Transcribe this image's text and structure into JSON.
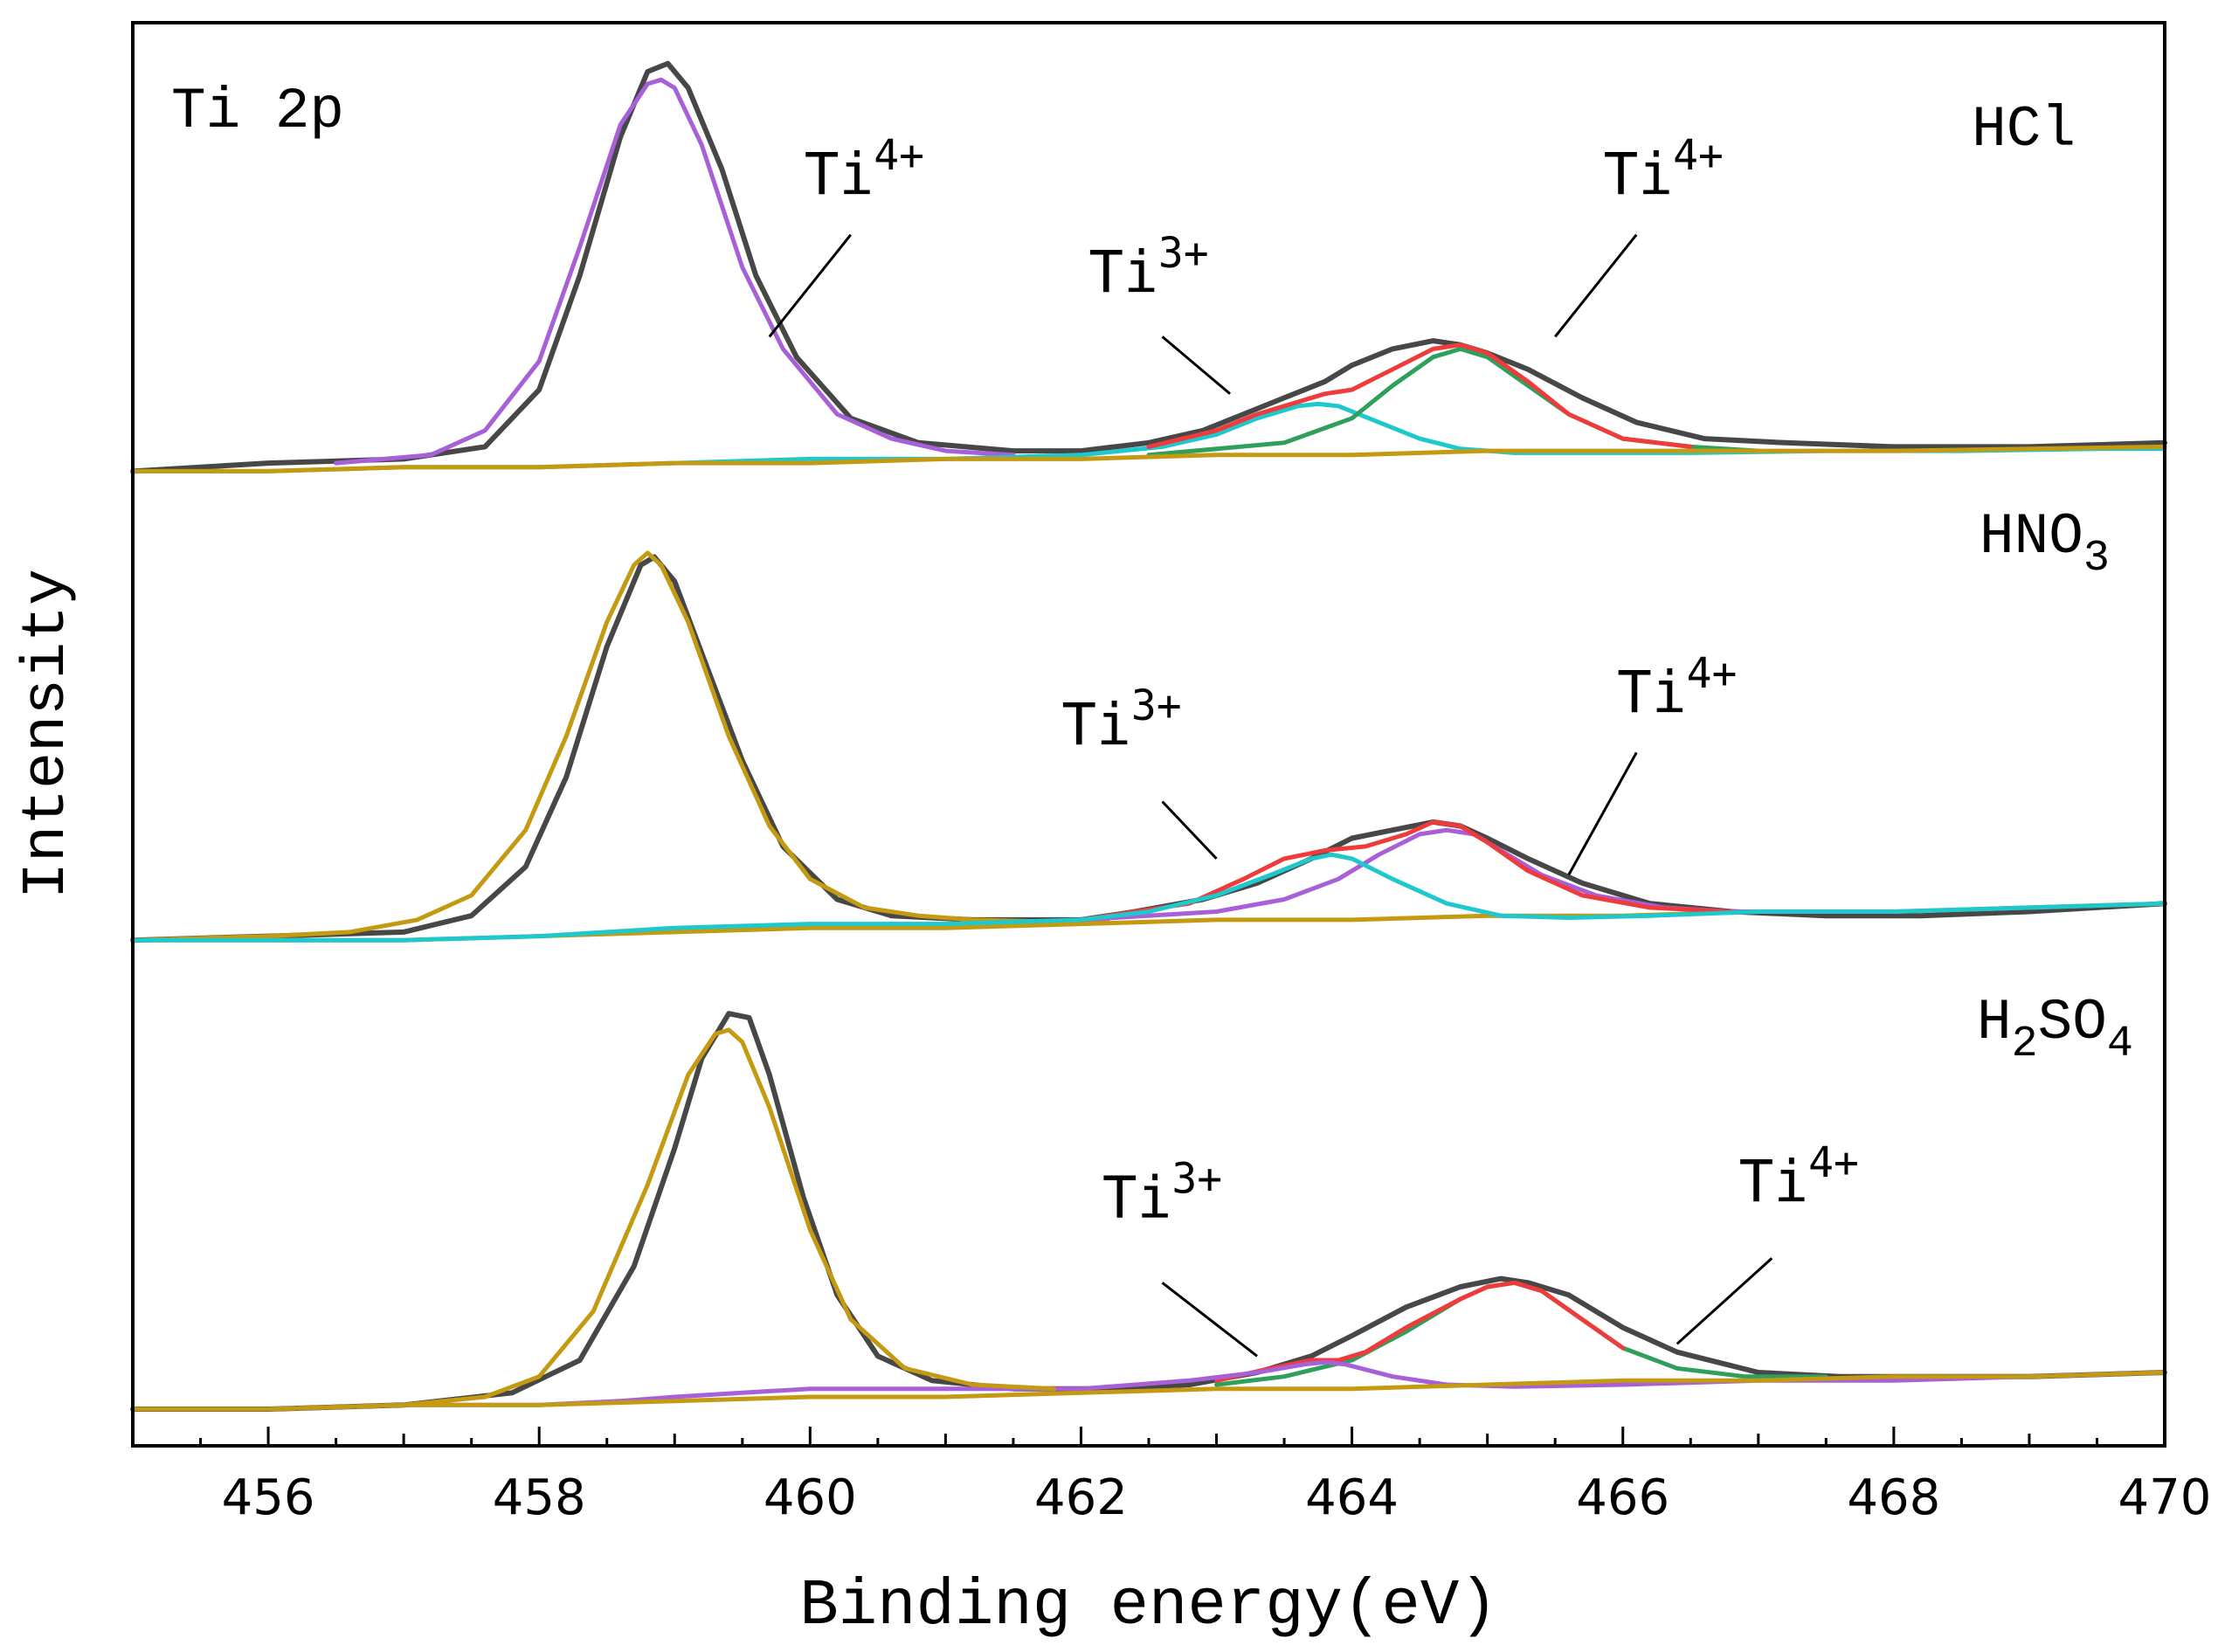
{
  "chart_data": {
    "type": "line",
    "title": "Ti 2p",
    "xlabel": "Binding energy(eV)",
    "ylabel": "Intensity",
    "xlim": [
      455,
      470
    ],
    "ylim": [
      0,
      3.4
    ],
    "xticks": [
      456,
      458,
      460,
      462,
      464,
      466,
      468,
      470
    ],
    "colors": {
      "raw": "#474747",
      "envelope": "#ef3b3b",
      "ti4_main": "#a860d8",
      "ti4_sat": "#2ea05c",
      "ti3": "#1ec8cc",
      "background": "#c49a12",
      "axis": "#000000"
    },
    "panels": [
      {
        "name": "HCl",
        "sample": "HCl",
        "offset": 2.3,
        "annotations": [
          {
            "name": "ti4-main",
            "base": "Ti",
            "sup": "4+",
            "x": 460.4,
            "y": 0.68,
            "line_from": [
              460.3,
              0.58
            ],
            "line_to": [
              459.7,
              0.33
            ]
          },
          {
            "name": "ti3",
            "base": "Ti",
            "sup": "3+",
            "x": 462.5,
            "y": 0.44,
            "line_from": [
              462.6,
              0.33
            ],
            "line_to": [
              463.1,
              0.19
            ]
          },
          {
            "name": "ti4-sat",
            "base": "Ti",
            "sup": "4+",
            "x": 466.3,
            "y": 0.68,
            "line_from": [
              466.1,
              0.58
            ],
            "line_to": [
              465.5,
              0.33
            ]
          }
        ],
        "series": [
          {
            "name": "raw",
            "x": [
              455,
              456,
              457,
              457.6,
              458.0,
              458.3,
              458.6,
              458.8,
              458.95,
              459.1,
              459.35,
              459.6,
              459.9,
              460.3,
              460.8,
              461.5,
              462.0,
              462.5,
              462.9,
              463.2,
              463.5,
              463.8,
              464.0,
              464.3,
              464.6,
              464.8,
              465.0,
              465.3,
              465.7,
              466.1,
              466.6,
              467.2,
              468,
              469,
              470
            ],
            "y": [
              0.0,
              0.02,
              0.03,
              0.06,
              0.2,
              0.48,
              0.82,
              0.98,
              1.0,
              0.94,
              0.74,
              0.48,
              0.28,
              0.13,
              0.07,
              0.05,
              0.05,
              0.07,
              0.1,
              0.14,
              0.18,
              0.22,
              0.26,
              0.3,
              0.32,
              0.31,
              0.29,
              0.25,
              0.18,
              0.12,
              0.08,
              0.07,
              0.06,
              0.06,
              0.07
            ]
          },
          {
            "name": "ti4-main-fit",
            "x": [
              456.5,
              457.2,
              457.6,
              458.0,
              458.3,
              458.6,
              458.8,
              458.9,
              459.0,
              459.2,
              459.5,
              459.8,
              460.2,
              460.6,
              461.0,
              461.5
            ],
            "y": [
              0.02,
              0.04,
              0.1,
              0.27,
              0.55,
              0.85,
              0.95,
              0.96,
              0.94,
              0.8,
              0.5,
              0.3,
              0.14,
              0.08,
              0.05,
              0.04
            ]
          },
          {
            "name": "ti3-fit",
            "x": [
              455,
              456,
              457,
              458,
              459,
              460,
              461,
              462,
              462.6,
              463.0,
              463.3,
              463.6,
              463.75,
              463.9,
              464.2,
              464.5,
              464.8,
              465.2,
              465.8,
              466.5,
              467.5,
              468.5,
              469.5,
              470
            ],
            "y": [
              0.0,
              0.0,
              0.01,
              0.01,
              0.02,
              0.03,
              0.03,
              0.04,
              0.06,
              0.09,
              0.13,
              0.16,
              0.165,
              0.16,
              0.12,
              0.08,
              0.055,
              0.045,
              0.045,
              0.045,
              0.05,
              0.05,
              0.055,
              0.055
            ]
          },
          {
            "name": "ti4-sat-fit",
            "x": [
              462.5,
              463.5,
              464.0,
              464.3,
              464.6,
              464.8,
              465.0,
              465.3,
              465.6,
              466.0,
              466.5,
              467.0
            ],
            "y": [
              0.04,
              0.07,
              0.13,
              0.21,
              0.28,
              0.3,
              0.28,
              0.21,
              0.14,
              0.08,
              0.06,
              0.05
            ]
          },
          {
            "name": "envelope-fit",
            "x": [
              462.5,
              463.0,
              463.3,
              463.6,
              463.8,
              464.0,
              464.3,
              464.6,
              464.8,
              465.0,
              465.3,
              465.6,
              466.0,
              466.5
            ],
            "y": [
              0.06,
              0.1,
              0.14,
              0.17,
              0.19,
              0.2,
              0.25,
              0.3,
              0.31,
              0.29,
              0.22,
              0.14,
              0.08,
              0.06
            ]
          },
          {
            "name": "background",
            "x": [
              455,
              456,
              457,
              458,
              459,
              460,
              461,
              462,
              463,
              464,
              465,
              466,
              467,
              468,
              469,
              470
            ],
            "y": [
              0.0,
              0.0,
              0.01,
              0.01,
              0.02,
              0.02,
              0.03,
              0.03,
              0.04,
              0.04,
              0.05,
              0.05,
              0.05,
              0.05,
              0.055,
              0.06
            ]
          }
        ]
      },
      {
        "name": "HNO3",
        "sample": "HNO",
        "sample_sub": "3",
        "offset": 1.15,
        "annotations": [
          {
            "name": "ti3",
            "base": "Ti",
            "sup": "3+",
            "x": 462.3,
            "y": 0.48,
            "line_from": [
              462.6,
              0.34
            ],
            "line_to": [
              463.0,
              0.2
            ]
          },
          {
            "name": "ti4-sat",
            "base": "Ti",
            "sup": "4+",
            "x": 466.4,
            "y": 0.56,
            "line_from": [
              466.1,
              0.46
            ],
            "line_to": [
              465.6,
              0.16
            ]
          }
        ],
        "series": [
          {
            "name": "raw",
            "x": [
              455,
              456,
              457,
              457.5,
              457.9,
              458.2,
              458.5,
              458.75,
              458.85,
              459.0,
              459.25,
              459.5,
              459.8,
              460.2,
              460.6,
              461.2,
              462.0,
              462.4,
              462.9,
              463.3,
              463.7,
              464.0,
              464.3,
              464.6,
              464.8,
              465.0,
              465.3,
              465.7,
              466.2,
              466.8,
              467.5,
              468.2,
              469,
              470
            ],
            "y": [
              0.0,
              0.01,
              0.02,
              0.06,
              0.18,
              0.4,
              0.72,
              0.92,
              0.94,
              0.88,
              0.66,
              0.44,
              0.23,
              0.1,
              0.06,
              0.05,
              0.05,
              0.07,
              0.1,
              0.14,
              0.2,
              0.25,
              0.27,
              0.29,
              0.28,
              0.25,
              0.2,
              0.14,
              0.09,
              0.07,
              0.06,
              0.06,
              0.07,
              0.09
            ]
          },
          {
            "name": "background",
            "x": [
              455,
              456,
              457,
              458,
              459,
              460,
              461,
              462,
              463,
              464,
              465,
              466,
              467,
              468,
              469,
              470
            ],
            "y": [
              0.0,
              0.0,
              0.0,
              0.01,
              0.02,
              0.03,
              0.03,
              0.04,
              0.05,
              0.05,
              0.06,
              0.06,
              0.07,
              0.07,
              0.08,
              0.09
            ]
          },
          {
            "name": "ti4-main-fit",
            "x": [
              455,
              456,
              456.6,
              457.1,
              457.5,
              457.9,
              458.2,
              458.5,
              458.7,
              458.8,
              458.9,
              459.1,
              459.4,
              459.7,
              460.0,
              460.4,
              460.8,
              461.2,
              461.8,
              462.2
            ],
            "y": [
              0.0,
              0.01,
              0.02,
              0.05,
              0.11,
              0.27,
              0.5,
              0.78,
              0.92,
              0.95,
              0.92,
              0.78,
              0.5,
              0.28,
              0.15,
              0.08,
              0.06,
              0.05,
              0.045,
              0.045
            ]
          },
          {
            "name": "ti4-sat-fit",
            "x": [
              462.0,
              463.0,
              463.5,
              463.9,
              464.2,
              464.5,
              464.7,
              464.9,
              465.1,
              465.4,
              465.8,
              466.3,
              466.8,
              467.5
            ],
            "y": [
              0.05,
              0.07,
              0.1,
              0.15,
              0.21,
              0.26,
              0.27,
              0.26,
              0.22,
              0.16,
              0.11,
              0.08,
              0.07,
              0.07
            ]
          },
          {
            "name": "envelope-fit",
            "x": [
              462.0,
              462.8,
              463.2,
              463.5,
              463.8,
              464.1,
              464.4,
              464.6,
              464.8,
              465.0,
              465.3,
              465.7,
              466.2,
              466.8
            ],
            "y": [
              0.05,
              0.09,
              0.15,
              0.2,
              0.22,
              0.23,
              0.26,
              0.29,
              0.28,
              0.24,
              0.17,
              0.11,
              0.08,
              0.07
            ]
          },
          {
            "name": "ti3-fit",
            "x": [
              455,
              456,
              457,
              458,
              459,
              460,
              461,
              462,
              462.5,
              463.0,
              463.4,
              463.7,
              463.85,
              464.0,
              464.3,
              464.7,
              465.1,
              465.6,
              466.2,
              467,
              468,
              469,
              470
            ],
            "y": [
              0.0,
              0.0,
              0.0,
              0.01,
              0.03,
              0.04,
              0.04,
              0.05,
              0.07,
              0.11,
              0.16,
              0.2,
              0.21,
              0.2,
              0.15,
              0.09,
              0.06,
              0.055,
              0.06,
              0.07,
              0.07,
              0.08,
              0.09
            ]
          }
        ]
      },
      {
        "name": "H2SO4",
        "sample_pre": "H",
        "sample_sub1": "2",
        "sample_mid": "SO",
        "sample_sub2": "4",
        "offset": 0.0,
        "annotations": [
          {
            "name": "ti3",
            "base": "Ti",
            "sup": "3+",
            "x": 462.6,
            "y": 0.47,
            "line_from": [
              462.6,
              0.31
            ],
            "line_to": [
              463.3,
              0.13
            ]
          },
          {
            "name": "ti4-sat",
            "base": "Ti",
            "sup": "4+",
            "x": 467.3,
            "y": 0.51,
            "line_from": [
              467.1,
              0.37
            ],
            "line_to": [
              466.4,
              0.16
            ]
          }
        ],
        "series": [
          {
            "name": "raw",
            "x": [
              455,
              456,
              457,
              457.8,
              458.3,
              458.7,
              459.0,
              459.2,
              459.4,
              459.55,
              459.7,
              459.95,
              460.2,
              460.5,
              460.9,
              461.5,
              462.2,
              462.8,
              463.3,
              463.7,
              464.0,
              464.4,
              464.8,
              465.1,
              465.3,
              465.6,
              466.0,
              466.4,
              467.0,
              467.6,
              468.3,
              469,
              470
            ],
            "y": [
              0.0,
              0.0,
              0.01,
              0.04,
              0.12,
              0.35,
              0.64,
              0.86,
              0.97,
              0.96,
              0.82,
              0.52,
              0.28,
              0.13,
              0.07,
              0.05,
              0.05,
              0.06,
              0.09,
              0.13,
              0.18,
              0.25,
              0.3,
              0.32,
              0.31,
              0.28,
              0.2,
              0.14,
              0.09,
              0.08,
              0.08,
              0.08,
              0.09
            ]
          },
          {
            "name": "ti4-sat-fit",
            "x": [
              463.0,
              463.5,
              464.0,
              464.4,
              464.8,
              465.0,
              465.2,
              465.4,
              465.7,
              466.0,
              466.4,
              466.9,
              467.5
            ],
            "y": [
              0.06,
              0.08,
              0.12,
              0.19,
              0.27,
              0.3,
              0.31,
              0.29,
              0.22,
              0.15,
              0.1,
              0.08,
              0.08
            ]
          },
          {
            "name": "envelope-fit",
            "x": [
              463.0,
              463.4,
              463.7,
              463.9,
              464.1,
              464.4,
              464.8,
              465.0,
              465.2,
              465.4,
              465.7,
              466.0
            ],
            "y": [
              0.07,
              0.1,
              0.12,
              0.12,
              0.14,
              0.2,
              0.27,
              0.3,
              0.31,
              0.29,
              0.22,
              0.15
            ]
          },
          {
            "name": "ti3-fit",
            "x": [
              455,
              456,
              457,
              458,
              458.6,
              459.0,
              459.5,
              460.0,
              461.0,
              462.0,
              462.8,
              463.3,
              463.65,
              463.8,
              463.95,
              464.3,
              464.7,
              465.2,
              466,
              467,
              468,
              469,
              470
            ],
            "y": [
              0.0,
              0.0,
              0.01,
              0.01,
              0.02,
              0.03,
              0.04,
              0.05,
              0.05,
              0.05,
              0.07,
              0.09,
              0.11,
              0.115,
              0.11,
              0.08,
              0.06,
              0.055,
              0.06,
              0.07,
              0.07,
              0.08,
              0.09
            ]
          },
          {
            "name": "background",
            "x": [
              455,
              456,
              457,
              458,
              459,
              460,
              461,
              462,
              463,
              464,
              465,
              466,
              467,
              468,
              469,
              470
            ],
            "y": [
              0.0,
              0.0,
              0.01,
              0.01,
              0.02,
              0.03,
              0.03,
              0.04,
              0.05,
              0.05,
              0.06,
              0.07,
              0.07,
              0.08,
              0.08,
              0.09
            ]
          },
          {
            "name": "ti4-main-fit",
            "x": [
              455,
              456,
              457,
              457.6,
              458.0,
              458.4,
              458.8,
              459.1,
              459.3,
              459.4,
              459.5,
              459.7,
              460.0,
              460.3,
              460.7,
              461.2,
              461.8
            ],
            "y": [
              0.0,
              0.0,
              0.01,
              0.03,
              0.08,
              0.24,
              0.55,
              0.82,
              0.92,
              0.93,
              0.9,
              0.74,
              0.44,
              0.22,
              0.1,
              0.06,
              0.05
            ]
          }
        ]
      }
    ]
  }
}
